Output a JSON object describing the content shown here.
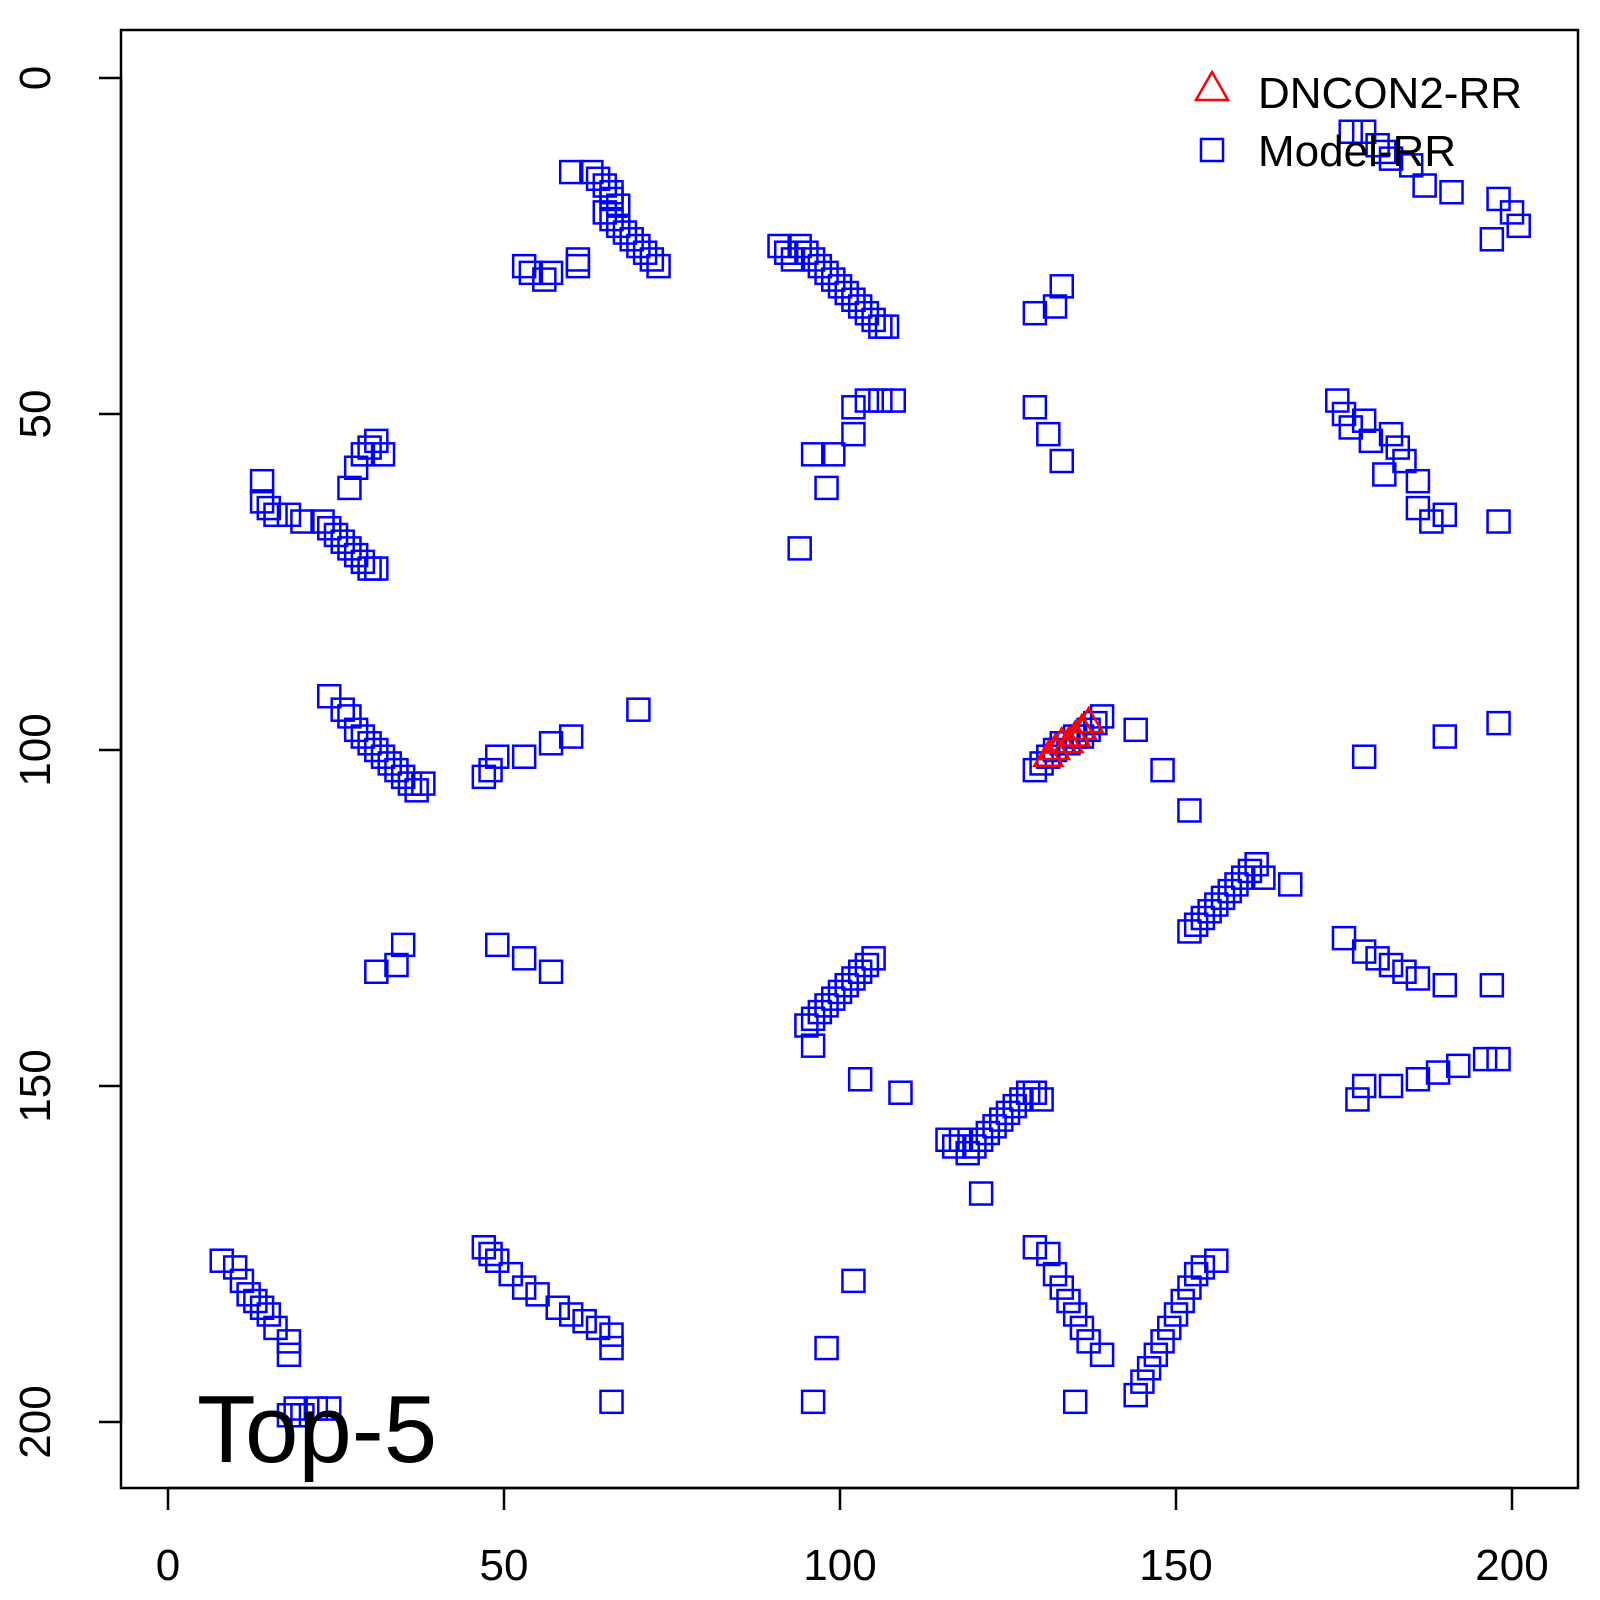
{
  "chart_data": {
    "type": "scatter",
    "title": "",
    "xlabel": "",
    "ylabel": "",
    "xlim": [
      -7,
      210
    ],
    "ylim": [
      -7,
      210
    ],
    "y_axis_inverted": true,
    "x_ticks": [
      0,
      50,
      100,
      150,
      200
    ],
    "y_ticks": [
      0,
      50,
      100,
      150,
      200
    ],
    "grid": false,
    "legend_position": "top-right",
    "annotation": "Top-5",
    "series": [
      {
        "name": "DNCON2-RR",
        "marker": "triangle",
        "color": "#ff0000",
        "points": [
          [
            131,
            101
          ],
          [
            132,
            100
          ],
          [
            133,
            99
          ],
          [
            134,
            99
          ],
          [
            135,
            98
          ],
          [
            136,
            97
          ],
          [
            137,
            96
          ]
        ]
      },
      {
        "name": "Model-RR",
        "marker": "square",
        "color": "#0000ff",
        "points": [
          [
            60,
            14
          ],
          [
            63,
            14
          ],
          [
            64,
            15
          ],
          [
            65,
            16
          ],
          [
            66,
            17
          ],
          [
            66,
            18
          ],
          [
            67,
            19
          ],
          [
            65,
            20
          ],
          [
            66,
            21
          ],
          [
            67,
            22
          ],
          [
            68,
            23
          ],
          [
            69,
            24
          ],
          [
            70,
            25
          ],
          [
            71,
            26
          ],
          [
            72,
            27
          ],
          [
            73,
            28
          ],
          [
            53,
            28
          ],
          [
            54,
            29
          ],
          [
            56,
            30
          ],
          [
            57,
            29
          ],
          [
            61,
            27
          ],
          [
            61,
            28
          ],
          [
            91,
            25
          ],
          [
            92,
            26
          ],
          [
            93,
            27
          ],
          [
            94,
            25
          ],
          [
            95,
            26
          ],
          [
            96,
            27
          ],
          [
            97,
            28
          ],
          [
            98,
            29
          ],
          [
            99,
            30
          ],
          [
            100,
            31
          ],
          [
            101,
            32
          ],
          [
            102,
            33
          ],
          [
            103,
            34
          ],
          [
            104,
            35
          ],
          [
            105,
            36
          ],
          [
            106,
            37
          ],
          [
            107,
            37
          ],
          [
            129,
            35
          ],
          [
            132,
            34
          ],
          [
            133,
            31
          ],
          [
            176,
            8
          ],
          [
            178,
            8
          ],
          [
            180,
            10
          ],
          [
            181,
            11
          ],
          [
            182,
            12
          ],
          [
            185,
            13
          ],
          [
            187,
            16
          ],
          [
            191,
            17
          ],
          [
            198,
            18
          ],
          [
            200,
            20
          ],
          [
            201,
            22
          ],
          [
            197,
            24
          ],
          [
            14,
            60
          ],
          [
            14,
            63
          ],
          [
            15,
            64
          ],
          [
            16,
            65
          ],
          [
            18,
            65
          ],
          [
            20,
            66
          ],
          [
            23,
            66
          ],
          [
            24,
            67
          ],
          [
            25,
            68
          ],
          [
            26,
            69
          ],
          [
            27,
            70
          ],
          [
            28,
            71
          ],
          [
            29,
            72
          ],
          [
            30,
            73
          ],
          [
            31,
            73
          ],
          [
            27,
            61
          ],
          [
            28,
            58
          ],
          [
            29,
            56
          ],
          [
            30,
            55
          ],
          [
            31,
            54
          ],
          [
            32,
            56
          ],
          [
            102,
            49
          ],
          [
            104,
            48
          ],
          [
            106,
            48
          ],
          [
            108,
            48
          ],
          [
            96,
            56
          ],
          [
            99,
            56
          ],
          [
            102,
            53
          ],
          [
            98,
            61
          ],
          [
            94,
            70
          ],
          [
            129,
            49
          ],
          [
            131,
            53
          ],
          [
            133,
            57
          ],
          [
            174,
            48
          ],
          [
            175,
            50
          ],
          [
            176,
            52
          ],
          [
            178,
            51
          ],
          [
            179,
            54
          ],
          [
            181,
            59
          ],
          [
            182,
            53
          ],
          [
            183,
            55
          ],
          [
            184,
            57
          ],
          [
            186,
            60
          ],
          [
            186,
            64
          ],
          [
            188,
            66
          ],
          [
            190,
            65
          ],
          [
            198,
            66
          ],
          [
            24,
            92
          ],
          [
            26,
            94
          ],
          [
            27,
            95
          ],
          [
            28,
            97
          ],
          [
            29,
            98
          ],
          [
            30,
            99
          ],
          [
            31,
            100
          ],
          [
            32,
            101
          ],
          [
            33,
            102
          ],
          [
            34,
            103
          ],
          [
            35,
            104
          ],
          [
            36,
            105
          ],
          [
            37,
            106
          ],
          [
            38,
            105
          ],
          [
            47,
            104
          ],
          [
            48,
            103
          ],
          [
            49,
            101
          ],
          [
            53,
            101
          ],
          [
            57,
            99
          ],
          [
            60,
            98
          ],
          [
            70,
            94
          ],
          [
            129,
            103
          ],
          [
            130,
            102
          ],
          [
            131,
            101
          ],
          [
            132,
            100
          ],
          [
            133,
            99
          ],
          [
            134,
            99
          ],
          [
            135,
            98
          ],
          [
            136,
            98
          ],
          [
            137,
            97
          ],
          [
            138,
            96
          ],
          [
            139,
            95
          ],
          [
            144,
            97
          ],
          [
            148,
            103
          ],
          [
            152,
            109
          ],
          [
            178,
            101
          ],
          [
            190,
            98
          ],
          [
            198,
            96
          ],
          [
            152,
            127
          ],
          [
            153,
            126
          ],
          [
            154,
            125
          ],
          [
            155,
            124
          ],
          [
            156,
            123
          ],
          [
            157,
            122
          ],
          [
            158,
            121
          ],
          [
            159,
            120
          ],
          [
            160,
            119
          ],
          [
            161,
            118
          ],
          [
            162,
            117
          ],
          [
            163,
            119
          ],
          [
            167,
            120
          ],
          [
            175,
            128
          ],
          [
            178,
            130
          ],
          [
            180,
            131
          ],
          [
            182,
            132
          ],
          [
            184,
            133
          ],
          [
            186,
            134
          ],
          [
            190,
            135
          ],
          [
            197,
            135
          ],
          [
            95,
            141
          ],
          [
            96,
            140
          ],
          [
            97,
            139
          ],
          [
            98,
            138
          ],
          [
            99,
            137
          ],
          [
            100,
            136
          ],
          [
            101,
            135
          ],
          [
            102,
            134
          ],
          [
            103,
            133
          ],
          [
            104,
            132
          ],
          [
            105,
            131
          ],
          [
            96,
            144
          ],
          [
            103,
            149
          ],
          [
            109,
            151
          ],
          [
            31,
            133
          ],
          [
            34,
            132
          ],
          [
            35,
            129
          ],
          [
            49,
            129
          ],
          [
            53,
            131
          ],
          [
            57,
            133
          ],
          [
            116,
            158
          ],
          [
            117,
            159
          ],
          [
            118,
            158
          ],
          [
            119,
            160
          ],
          [
            120,
            159
          ],
          [
            121,
            158
          ],
          [
            122,
            157
          ],
          [
            123,
            156
          ],
          [
            124,
            155
          ],
          [
            125,
            154
          ],
          [
            126,
            153
          ],
          [
            127,
            152
          ],
          [
            128,
            151
          ],
          [
            129,
            151
          ],
          [
            130,
            152
          ],
          [
            121,
            166
          ],
          [
            177,
            152
          ],
          [
            178,
            150
          ],
          [
            182,
            150
          ],
          [
            186,
            149
          ],
          [
            189,
            148
          ],
          [
            192,
            147
          ],
          [
            196,
            146
          ],
          [
            198,
            146
          ],
          [
            8,
            176
          ],
          [
            10,
            177
          ],
          [
            11,
            179
          ],
          [
            12,
            181
          ],
          [
            13,
            182
          ],
          [
            14,
            183
          ],
          [
            15,
            184
          ],
          [
            16,
            186
          ],
          [
            18,
            188
          ],
          [
            18,
            190
          ],
          [
            47,
            174
          ],
          [
            48,
            175
          ],
          [
            49,
            176
          ],
          [
            51,
            178
          ],
          [
            53,
            180
          ],
          [
            55,
            181
          ],
          [
            58,
            183
          ],
          [
            60,
            184
          ],
          [
            62,
            185
          ],
          [
            64,
            186
          ],
          [
            66,
            187
          ],
          [
            66,
            189
          ],
          [
            66,
            197
          ],
          [
            129,
            174
          ],
          [
            131,
            175
          ],
          [
            132,
            178
          ],
          [
            133,
            180
          ],
          [
            134,
            182
          ],
          [
            135,
            184
          ],
          [
            136,
            186
          ],
          [
            137,
            188
          ],
          [
            139,
            190
          ],
          [
            135,
            197
          ],
          [
            102,
            179
          ],
          [
            98,
            189
          ],
          [
            96,
            197
          ],
          [
            144,
            196
          ],
          [
            145,
            194
          ],
          [
            146,
            192
          ],
          [
            147,
            190
          ],
          [
            148,
            188
          ],
          [
            149,
            186
          ],
          [
            150,
            184
          ],
          [
            151,
            182
          ],
          [
            152,
            180
          ],
          [
            153,
            178
          ],
          [
            154,
            177
          ],
          [
            156,
            176
          ],
          [
            18,
            199
          ],
          [
            19,
            198
          ],
          [
            20,
            199
          ],
          [
            22,
            198
          ],
          [
            24,
            198
          ]
        ]
      }
    ]
  },
  "legend": {
    "items": [
      "DNCON2-RR",
      "Model-RR"
    ]
  }
}
